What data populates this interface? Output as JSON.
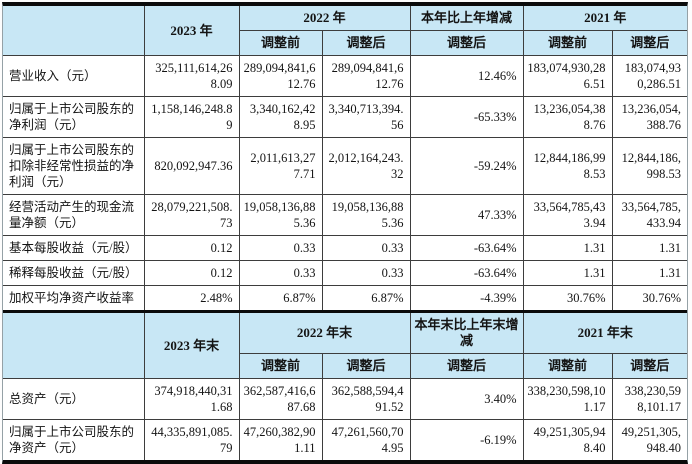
{
  "colors": {
    "header_bg": "#c8e7f5",
    "grid_line": "#3d3d3d",
    "thick_line": "#0b0b0b",
    "outer_edge": "#95a1a6"
  },
  "section_current_period": {
    "header": {
      "corner": "",
      "y2023": "2023 年",
      "y2022": "2022 年",
      "change": "本年比上年增减",
      "y2021": "2021 年",
      "adj_before_2022": "调整前",
      "adj_after_2022": "调整后",
      "adj_after_change": "调整后",
      "adj_before_2021": "调整前",
      "adj_after_2021": "调整后"
    },
    "rows": [
      {
        "label": "营业收入（元）",
        "values": [
          "325,111,614,268.09",
          "289,094,841,612.76",
          "289,094,841,612.76",
          "12.46%",
          "183,074,930,286.51",
          "183,074,930,286.51"
        ]
      },
      {
        "label": "归属于上市公司股东的净利润（元）",
        "values": [
          "1,158,146,248.89",
          "3,340,162,428.95",
          "3,340,713,394.56",
          "-65.33%",
          "13,236,054,388.76",
          "13,236,054,388.76"
        ]
      },
      {
        "label": "归属于上市公司股东的扣除非经常性损益的净利润（元）",
        "values": [
          "820,092,947.36",
          "2,011,613,277.71",
          "2,012,164,243.32",
          "-59.24%",
          "12,844,186,998.53",
          "12,844,186,998.53"
        ]
      },
      {
        "label": "经营活动产生的现金流量净额（元）",
        "values": [
          "28,079,221,508.73",
          "19,058,136,885.36",
          "19,058,136,885.36",
          "47.33%",
          "33,564,785,433.94",
          "33,564,785,433.94"
        ]
      },
      {
        "label": "基本每股收益（元/股）",
        "values": [
          "0.12",
          "0.33",
          "0.33",
          "-63.64%",
          "1.31",
          "1.31"
        ]
      },
      {
        "label": "稀释每股收益（元/股）",
        "values": [
          "0.12",
          "0.33",
          "0.33",
          "-63.64%",
          "1.31",
          "1.31"
        ]
      },
      {
        "label": "加权平均净资产收益率",
        "values": [
          "2.48%",
          "6.87%",
          "6.87%",
          "-4.39%",
          "30.76%",
          "30.76%"
        ]
      }
    ]
  },
  "section_period_end": {
    "header": {
      "corner": "",
      "y2023": "2023 年末",
      "y2022": "2022 年末",
      "change": "本年末比上年末增减",
      "y2021": "2021 年末",
      "adj_before_2022": "调整前",
      "adj_after_2022": "调整后",
      "adj_after_change": "调整后",
      "adj_before_2021": "调整前",
      "adj_after_2021": "调整后"
    },
    "rows": [
      {
        "label": "总资产（元）",
        "values": [
          "374,918,440,311.68",
          "362,587,416,687.68",
          "362,588,594,491.52",
          "3.40%",
          "338,230,598,101.17",
          "338,230,598,101.17"
        ]
      },
      {
        "label": "归属于上市公司股东的净资产（元）",
        "values": [
          "44,335,891,085.79",
          "47,260,382,901.11",
          "47,261,560,704.95",
          "-6.19%",
          "49,251,305,948.40",
          "49,251,305,948.40"
        ]
      }
    ]
  }
}
